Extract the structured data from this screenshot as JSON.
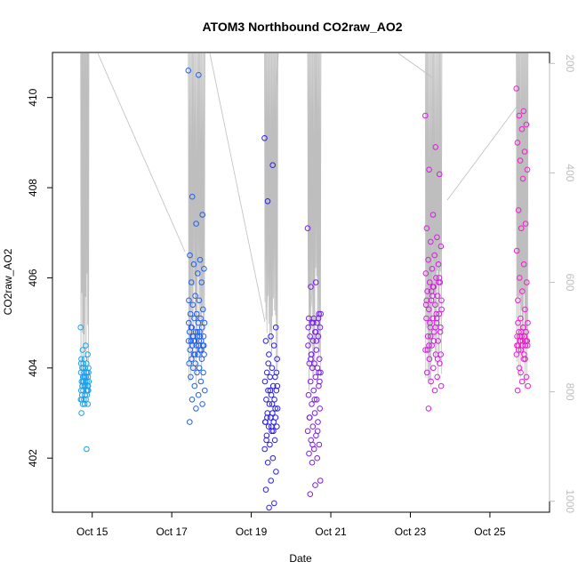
{
  "chart_data": {
    "type": "scatter",
    "title": "ATOM3 Northbound CO2raw_AO2",
    "xlabel": "Date",
    "ylabel": "CO2raw_AO2",
    "x_unit": "date",
    "xlim": [
      "2016-10-14T00:00",
      "2016-10-26T12:00"
    ],
    "ylim": [
      400.8,
      411.0
    ],
    "x_ticks": [
      {
        "value": "2016-10-15T00:00",
        "label": "Oct 15"
      },
      {
        "value": "2016-10-17T00:00",
        "label": "Oct 17"
      },
      {
        "value": "2016-10-19T00:00",
        "label": "Oct 19"
      },
      {
        "value": "2016-10-21T00:00",
        "label": "Oct 21"
      },
      {
        "value": "2016-10-23T00:00",
        "label": "Oct 23"
      },
      {
        "value": "2016-10-25T00:00",
        "label": "Oct 25"
      }
    ],
    "y_ticks": [
      402,
      404,
      406,
      408,
      410
    ],
    "y2_ticks": [
      200,
      400,
      600,
      800,
      1000
    ],
    "y2lim": [
      1020,
      180
    ],
    "grid": false,
    "legend": "none",
    "colors": {
      "points": [
        "#1fa0e8",
        "#2060ee",
        "#2a1fe8",
        "#7a20ea",
        "#d41fe0",
        "#f01ed0"
      ],
      "pressure_line": "#bebebe",
      "axis": "#000000"
    },
    "series": [
      {
        "x_range": [
          "2016-10-14T17:00",
          "2016-10-14T22:00"
        ],
        "color": "#1fa0e8",
        "y": [
          404.9,
          404.5,
          404.4,
          404.3,
          404.2,
          404.2,
          404.1,
          404.1,
          404.0,
          404.0,
          404.0,
          403.9,
          403.9,
          403.9,
          403.8,
          403.8,
          403.8,
          403.8,
          403.7,
          403.7,
          403.7,
          403.7,
          403.6,
          403.6,
          403.6,
          403.6,
          403.5,
          403.5,
          403.5,
          403.5,
          403.4,
          403.4,
          403.4,
          403.3,
          403.3,
          403.3,
          403.2,
          403.2,
          403.2,
          403.0,
          402.2,
          404.0,
          403.9,
          403.7,
          403.6,
          403.5,
          403.8,
          404.1,
          403.9,
          403.7,
          403.6,
          403.4,
          403.3
        ]
      },
      {
        "x_range": [
          "2016-10-17T10:00",
          "2016-10-17T20:00"
        ],
        "color": "#2060ee",
        "y": [
          410.6,
          410.5,
          407.8,
          407.4,
          407.2,
          406.5,
          406.4,
          406.3,
          406.2,
          406.1,
          405.9,
          405.9,
          405.6,
          405.5,
          405.5,
          405.4,
          405.3,
          405.2,
          405.2,
          405.1,
          405.1,
          405.0,
          405.0,
          404.9,
          404.9,
          404.8,
          404.8,
          404.8,
          404.7,
          404.7,
          404.7,
          404.6,
          404.6,
          404.6,
          404.6,
          404.5,
          404.5,
          404.5,
          404.5,
          404.4,
          404.4,
          404.3,
          404.3,
          404.3,
          404.2,
          404.2,
          404.1,
          404.1,
          404.0,
          404.0,
          403.9,
          403.9,
          403.8,
          403.7,
          403.6,
          403.5,
          403.4,
          403.3,
          403.2,
          403.1,
          402.8,
          404.7,
          404.6,
          404.5,
          404.8,
          404.9,
          404.4,
          404.3,
          405.0,
          404.6,
          404.7
        ]
      },
      {
        "x_range": [
          "2016-10-19T08:00",
          "2016-10-19T16:00"
        ],
        "color": "#2a1fe8",
        "y": [
          409.1,
          408.5,
          407.7,
          404.9,
          404.7,
          404.6,
          404.5,
          404.3,
          404.2,
          404.0,
          403.9,
          403.8,
          403.8,
          403.7,
          403.6,
          403.5,
          403.5,
          403.4,
          403.3,
          403.3,
          403.2,
          403.1,
          403.0,
          403.0,
          402.9,
          402.9,
          402.8,
          402.8,
          402.7,
          402.7,
          402.6,
          402.5,
          402.4,
          402.3,
          402.2,
          402.0,
          401.9,
          401.7,
          401.5,
          401.3,
          401.0,
          400.9,
          403.6,
          403.2,
          402.9,
          403.1,
          403.5,
          402.8,
          402.6,
          404.1,
          403.9,
          402.7,
          402.4
        ]
      },
      {
        "x_range": [
          "2016-10-20T10:00",
          "2016-10-20T18:00"
        ],
        "color": "#7a20ea",
        "y": [
          407.1,
          405.9,
          405.8,
          405.2,
          405.1,
          405.1,
          405.0,
          405.0,
          404.9,
          404.8,
          404.7,
          404.7,
          404.6,
          404.5,
          404.4,
          404.3,
          404.2,
          404.1,
          404.1,
          404.0,
          404.0,
          403.9,
          403.8,
          403.7,
          403.6,
          403.5,
          403.4,
          403.3,
          403.2,
          403.1,
          403.0,
          402.9,
          402.8,
          402.7,
          402.6,
          402.5,
          402.4,
          402.3,
          402.2,
          402.1,
          402.0,
          401.9,
          401.5,
          401.4,
          401.2,
          405.1,
          405.0,
          404.9,
          404.6,
          404.3,
          403.7,
          403.3,
          402.9,
          402.6,
          402.3,
          405.2,
          404.8,
          404.2,
          403.9
        ]
      },
      {
        "x_range": [
          "2016-10-23T09:00",
          "2016-10-23T19:00"
        ],
        "color": "#d41fe0",
        "y": [
          409.6,
          408.9,
          408.4,
          408.3,
          407.4,
          407.1,
          406.9,
          406.8,
          406.7,
          406.5,
          406.4,
          406.3,
          406.2,
          406.1,
          406.0,
          405.9,
          405.9,
          405.8,
          405.7,
          405.6,
          405.5,
          405.5,
          405.4,
          405.3,
          405.2,
          405.1,
          405.1,
          405.0,
          404.9,
          404.9,
          404.8,
          404.7,
          404.6,
          404.5,
          404.4,
          404.3,
          404.2,
          404.1,
          404.0,
          403.9,
          403.8,
          403.7,
          403.6,
          403.5,
          403.1,
          405.9,
          405.6,
          405.4,
          405.2,
          405.0,
          404.8,
          404.6,
          404.4,
          404.2,
          405.7,
          405.3,
          404.9,
          404.5,
          406.0,
          405.8,
          405.5,
          405.1,
          404.7,
          404.3
        ]
      },
      {
        "x_range": [
          "2016-10-25T16:00",
          "2016-10-25T23:00"
        ],
        "color": "#f01ed0",
        "y": [
          410.2,
          409.7,
          409.6,
          409.4,
          409.3,
          409.0,
          408.8,
          408.6,
          408.4,
          408.2,
          407.5,
          407.2,
          407.1,
          406.6,
          406.3,
          406.0,
          405.9,
          405.7,
          405.5,
          405.3,
          405.1,
          405.0,
          404.9,
          404.8,
          404.8,
          404.7,
          404.7,
          404.7,
          404.6,
          404.6,
          404.6,
          404.5,
          404.5,
          404.4,
          404.3,
          404.2,
          404.0,
          403.8,
          403.7,
          403.5,
          404.7,
          404.6,
          404.5,
          404.9,
          404.4,
          404.6,
          404.8,
          404.5,
          404.3,
          404.7,
          404.6,
          404.5,
          405.0,
          404.2,
          403.9,
          403.6
        ]
      }
    ]
  }
}
